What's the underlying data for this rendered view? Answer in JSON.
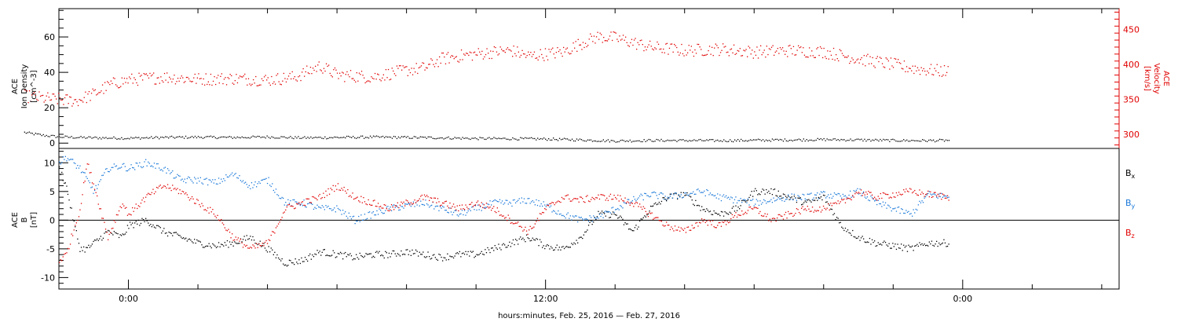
{
  "chart_data": [
    {
      "type": "scatter",
      "panel": "top",
      "ylabel_left": [
        "ACE",
        "Ion Density",
        "[cm^-3]"
      ],
      "ylabel_right": [
        "ACE",
        "Velocity",
        "[km/s]"
      ],
      "yticks_left": [
        0,
        20,
        40,
        60
      ],
      "yticks_right": [
        300,
        350,
        400,
        450
      ],
      "ylim_left": [
        -3,
        76
      ],
      "ylim_right": [
        280,
        480
      ],
      "right_axis_color": "#e00000",
      "series": [
        {
          "name": "",
          "axis": "left",
          "color": "#000000",
          "x": [
            -3.0,
            -2.5,
            -2.0,
            -1.0,
            0.0,
            1.0,
            2.0,
            3.0,
            4.0,
            5.0,
            6.0,
            7.0,
            8.0,
            9.0,
            10.0,
            11.0,
            12.0,
            13.0,
            14.0,
            15.0,
            16.0,
            17.0,
            18.0,
            19.0,
            20.0,
            21.0,
            22.0,
            23.0,
            23.6
          ],
          "y": [
            6,
            4.5,
            3.5,
            3,
            2.8,
            3.2,
            3.4,
            3.2,
            3.5,
            3,
            3.2,
            3.4,
            3.2,
            3,
            2.6,
            2.5,
            2.3,
            1.8,
            1.2,
            1.5,
            1.5,
            1.4,
            1.6,
            1.8,
            2,
            1.8,
            1.5,
            1.4,
            1.6
          ]
        },
        {
          "name": "",
          "axis": "right",
          "color": "#e00000",
          "x": [
            -3.0,
            -2.5,
            -2.0,
            -1.5,
            -1.0,
            -0.5,
            0.0,
            1.0,
            2.0,
            3.0,
            4.0,
            4.8,
            5.5,
            6.0,
            7.0,
            8.0,
            8.5,
            9.0,
            9.5,
            10.0,
            10.5,
            11.0,
            11.5,
            12.0,
            12.5,
            13.0,
            13.5,
            14.0,
            15.0,
            16.0,
            17.0,
            18.0,
            19.0,
            20.0,
            21.0,
            22.0,
            22.5,
            23.0,
            23.6
          ],
          "y": [
            355,
            352,
            350,
            348,
            358,
            372,
            378,
            382,
            379,
            380,
            378,
            382,
            398,
            385,
            382,
            392,
            395,
            408,
            412,
            415,
            418,
            420,
            412,
            415,
            418,
            430,
            440,
            438,
            425,
            420,
            422,
            418,
            420,
            418,
            408,
            400,
            395,
            392,
            390
          ]
        }
      ]
    },
    {
      "type": "scatter",
      "panel": "bottom",
      "ylabel_left": [
        "ACE",
        "B",
        "[nT]"
      ],
      "yticks_left": [
        -10,
        -5,
        0,
        5,
        10
      ],
      "ylim_left": [
        -12,
        12.5
      ],
      "zero_line": true,
      "xticks": [
        {
          "x": 0,
          "label": "0:00"
        },
        {
          "x": 12,
          "label": "12:00"
        },
        {
          "x": 24,
          "label": "0:00"
        }
      ],
      "xlabel": "hours:minutes, Feb. 25, 2016 — Feb. 27, 2016",
      "xlim": [
        -2.0,
        28.5
      ],
      "series": [
        {
          "name": "Bx",
          "label_sub": "x",
          "color": "#000000",
          "x": [
            -2.0,
            -1.8,
            -1.6,
            -1.4,
            -1.2,
            -1.0,
            -0.6,
            -0.2,
            0.0,
            0.5,
            1.0,
            1.5,
            2.0,
            2.5,
            3.0,
            3.5,
            4.0,
            4.5,
            5.0,
            5.5,
            6.0,
            6.5,
            7.0,
            7.5,
            8.0,
            8.5,
            9.0,
            9.5,
            10.0,
            10.5,
            11.0,
            11.5,
            12.0,
            12.5,
            13.0,
            13.5,
            14.0,
            14.5,
            15.0,
            15.5,
            16.0,
            16.5,
            17.0,
            17.5,
            18.0,
            18.5,
            19.0,
            19.5,
            20.0,
            20.5,
            21.0,
            21.5,
            22.0,
            22.5,
            23.0,
            23.6
          ],
          "y": [
            9,
            6,
            0,
            -5,
            -5,
            -4,
            -2,
            -3,
            -1,
            0,
            -2,
            -3,
            -4,
            -4.5,
            -4,
            -3,
            -5,
            -7.5,
            -7,
            -5.5,
            -6,
            -6.5,
            -6,
            -6,
            -5.5,
            -6,
            -6.5,
            -6,
            -6,
            -5,
            -4,
            -3,
            -4.5,
            -5,
            -3,
            1,
            1,
            -2,
            2,
            4,
            4.5,
            2,
            1,
            2,
            5,
            5,
            4,
            3,
            4,
            -1,
            -3,
            -4,
            -4.5,
            -5,
            -4,
            -4
          ]
        },
        {
          "name": "By",
          "label_sub": "y",
          "color": "#1877d8",
          "x": [
            -2.0,
            -1.8,
            -1.6,
            -1.4,
            -1.2,
            -1.0,
            -0.6,
            -0.2,
            0.0,
            0.5,
            1.0,
            1.5,
            2.0,
            2.5,
            3.0,
            3.5,
            4.0,
            4.5,
            5.0,
            5.5,
            6.0,
            6.5,
            7.0,
            7.5,
            8.0,
            8.5,
            9.0,
            9.5,
            10.0,
            10.5,
            11.0,
            11.5,
            12.0,
            12.5,
            13.0,
            13.5,
            14.0,
            14.5,
            15.0,
            15.5,
            16.0,
            16.5,
            17.0,
            17.5,
            18.0,
            18.5,
            19.0,
            19.5,
            20.0,
            20.5,
            21.0,
            21.5,
            22.0,
            22.5,
            23.0,
            23.6
          ],
          "y": [
            10,
            11,
            10,
            9,
            7,
            5,
            9,
            9.5,
            9,
            10,
            9,
            7,
            7,
            6.5,
            8,
            6,
            7,
            3,
            3,
            2,
            2,
            0,
            1,
            2,
            2.5,
            3,
            2,
            1,
            2,
            3,
            3,
            3.5,
            2.5,
            1,
            0,
            0.5,
            2,
            3.5,
            4.5,
            4,
            4.5,
            5,
            4,
            3.5,
            3,
            3.5,
            4,
            4,
            4.5,
            4,
            5,
            3,
            2,
            1,
            4.5,
            4
          ]
        },
        {
          "name": "Bz",
          "label_sub": "z",
          "color": "#e00000",
          "x": [
            -2.0,
            -1.8,
            -1.6,
            -1.4,
            -1.2,
            -1.0,
            -0.6,
            -0.2,
            0.0,
            0.5,
            1.0,
            1.5,
            2.0,
            2.5,
            3.0,
            3.5,
            4.0,
            4.5,
            5.0,
            5.5,
            6.0,
            6.5,
            7.0,
            7.5,
            8.0,
            8.5,
            9.0,
            9.5,
            10.0,
            10.5,
            11.0,
            11.5,
            12.0,
            12.5,
            13.0,
            13.5,
            14.0,
            14.5,
            15.0,
            15.5,
            16.0,
            16.5,
            17.0,
            17.5,
            18.0,
            18.5,
            19.0,
            19.5,
            20.0,
            20.5,
            21.0,
            21.5,
            22.0,
            22.5,
            23.0,
            23.6
          ],
          "y": [
            -7,
            -6,
            -2,
            2,
            10,
            6,
            -3,
            3,
            1,
            4,
            6,
            5,
            3,
            1,
            -3,
            -5,
            -4,
            2,
            3,
            4,
            6,
            4,
            3,
            2,
            3,
            4,
            3,
            2,
            3,
            2,
            0,
            -2,
            2,
            4,
            3.5,
            4,
            4,
            3,
            1,
            -1,
            -2,
            0,
            -1,
            1,
            2,
            0,
            1,
            2,
            2,
            3,
            5,
            4,
            4.5,
            5,
            4.5,
            4
          ]
        }
      ]
    }
  ]
}
